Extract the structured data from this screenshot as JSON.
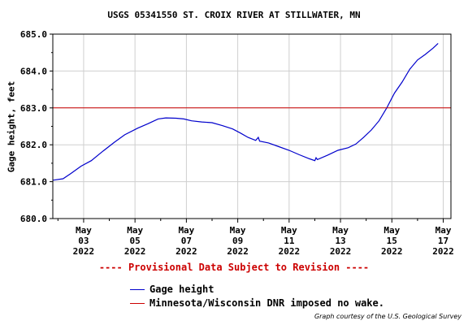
{
  "chart_data": {
    "type": "line",
    "title": "USGS 05341550 ST. CROIX RIVER AT STILLWATER, MN",
    "ylabel": "Gage height, feet",
    "xlabel": "",
    "ylim": [
      680.0,
      685.0
    ],
    "xlim": [
      1.8,
      17.3
    ],
    "y_ticks": [
      680.0,
      681.0,
      682.0,
      683.0,
      684.0,
      685.0
    ],
    "y_tick_labels": [
      "680.0",
      "681.0",
      "682.0",
      "683.0",
      "684.0",
      "685.0"
    ],
    "x_ticks": [
      {
        "x": 3,
        "month": "May",
        "day": "03",
        "year": "2022"
      },
      {
        "x": 5,
        "month": "May",
        "day": "05",
        "year": "2022"
      },
      {
        "x": 7,
        "month": "May",
        "day": "07",
        "year": "2022"
      },
      {
        "x": 9,
        "month": "May",
        "day": "09",
        "year": "2022"
      },
      {
        "x": 11,
        "month": "May",
        "day": "11",
        "year": "2022"
      },
      {
        "x": 13,
        "month": "May",
        "day": "13",
        "year": "2022"
      },
      {
        "x": 15,
        "month": "May",
        "day": "15",
        "year": "2022"
      },
      {
        "x": 17,
        "month": "May",
        "day": "17",
        "year": "2022"
      }
    ],
    "grid": true,
    "series": [
      {
        "name": "Gage height",
        "color": "#0000cc",
        "points": [
          [
            1.8,
            681.04
          ],
          [
            2.2,
            681.08
          ],
          [
            2.5,
            681.22
          ],
          [
            2.9,
            681.42
          ],
          [
            3.3,
            681.57
          ],
          [
            3.7,
            681.8
          ],
          [
            4.2,
            682.07
          ],
          [
            4.6,
            682.27
          ],
          [
            5.1,
            682.45
          ],
          [
            5.5,
            682.57
          ],
          [
            5.9,
            682.7
          ],
          [
            6.2,
            682.73
          ],
          [
            6.6,
            682.72
          ],
          [
            6.9,
            682.7
          ],
          [
            7.2,
            682.65
          ],
          [
            7.6,
            682.62
          ],
          [
            8.0,
            682.6
          ],
          [
            8.4,
            682.52
          ],
          [
            8.8,
            682.43
          ],
          [
            9.1,
            682.32
          ],
          [
            9.4,
            682.2
          ],
          [
            9.7,
            682.12
          ],
          [
            9.8,
            682.2
          ],
          [
            9.85,
            682.1
          ],
          [
            10.2,
            682.05
          ],
          [
            10.6,
            681.95
          ],
          [
            11.0,
            681.85
          ],
          [
            11.4,
            681.73
          ],
          [
            11.8,
            681.62
          ],
          [
            12.0,
            681.57
          ],
          [
            12.05,
            681.65
          ],
          [
            12.1,
            681.6
          ],
          [
            12.5,
            681.72
          ],
          [
            12.9,
            681.85
          ],
          [
            13.3,
            681.92
          ],
          [
            13.6,
            682.02
          ],
          [
            13.9,
            682.2
          ],
          [
            14.2,
            682.4
          ],
          [
            14.5,
            682.65
          ],
          [
            14.8,
            683.0
          ],
          [
            15.1,
            683.4
          ],
          [
            15.4,
            683.7
          ],
          [
            15.7,
            684.05
          ],
          [
            16.0,
            684.3
          ],
          [
            16.3,
            684.45
          ],
          [
            16.6,
            684.62
          ],
          [
            16.8,
            684.75
          ]
        ]
      },
      {
        "name": "Minnesota/Wisconsin DNR imposed no wake.",
        "color": "#cc0000",
        "type": "hline",
        "y": 683.0
      }
    ],
    "legend_placement": "bottom-left",
    "annotations": [
      {
        "text": "---- Provisional Data Subject to Revision ----",
        "color": "#cc0000"
      }
    ]
  },
  "credit": "Graph courtesy of the U.S. Geological Survey"
}
